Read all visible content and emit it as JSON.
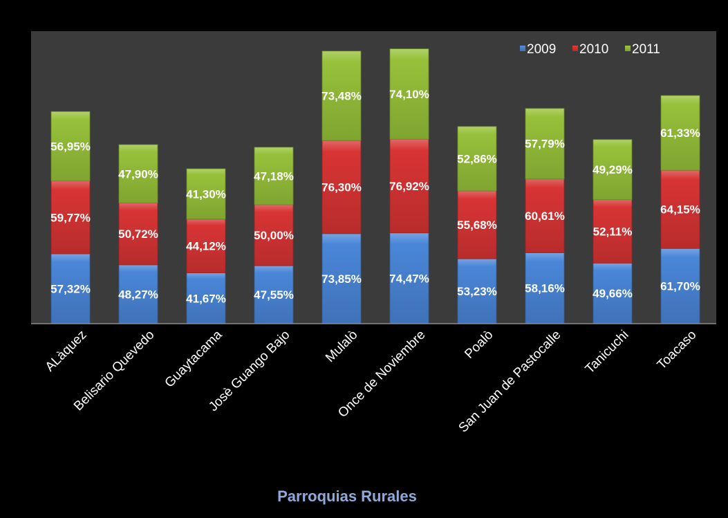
{
  "chart_data": {
    "type": "bar",
    "stacked": true,
    "title": "",
    "xlabel": "Parroquias Rurales",
    "ylabel": "",
    "categories": [
      "ALàquez",
      "Belisario Quevedo",
      "Guaytacama",
      "Josè Guango Bajo",
      "Mulalò",
      "Once de Noviembre",
      "Poalò",
      "San Juan de Pastocalle",
      "Tanicuchi",
      "Toacaso"
    ],
    "series": [
      {
        "name": "2009",
        "color": "#4a86d8",
        "values": [
          57.32,
          48.27,
          41.67,
          47.55,
          73.85,
          74.47,
          53.23,
          58.16,
          49.66,
          61.7
        ],
        "labels": [
          "57,32%",
          "48,27%",
          "41,67%",
          "47,55%",
          "73,85%",
          "74,47%",
          "53,23%",
          "58,16%",
          "49,66%",
          "61,70%"
        ]
      },
      {
        "name": "2010",
        "color": "#d83434",
        "values": [
          59.77,
          50.72,
          44.12,
          50.0,
          76.3,
          76.92,
          55.68,
          60.61,
          52.11,
          64.15
        ],
        "labels": [
          "59,77%",
          "50,72%",
          "44,12%",
          "50,00%",
          "76,30%",
          "76,92%",
          "55,68%",
          "60,61%",
          "52,11%",
          "64,15%"
        ]
      },
      {
        "name": "2011",
        "color": "#97c13a",
        "values": [
          56.95,
          47.9,
          41.3,
          47.18,
          73.48,
          74.1,
          52.86,
          57.79,
          49.29,
          61.33
        ],
        "labels": [
          "56,95%",
          "47,90%",
          "41,30%",
          "47,18%",
          "73,48%",
          "74,10%",
          "52,86%",
          "57,79%",
          "49,29%",
          "61,33%"
        ]
      }
    ],
    "ylim": [
      0,
      240
    ],
    "grid": false,
    "legend": "top-right",
    "colors": {
      "background": "#000000",
      "plot_area": "#3b3b3b",
      "text": "#ffffff",
      "xlabel": "#8eaadb"
    }
  }
}
